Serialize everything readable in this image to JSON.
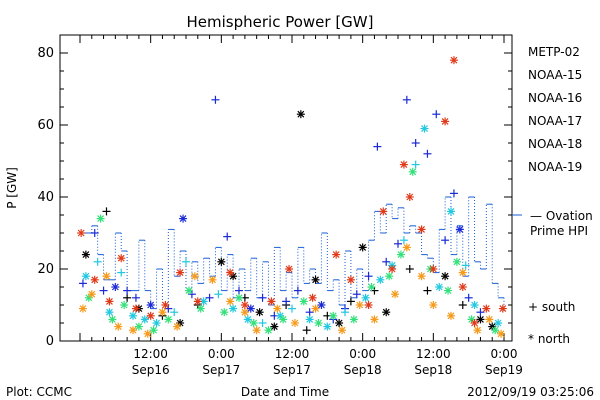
{
  "chart_data": {
    "type": "scatter",
    "title": "Hemispheric Power [GW]",
    "ylabel": "P [GW]",
    "xlabel": "Date and Time",
    "ylim": [
      0,
      85
    ],
    "yticks": [
      0,
      20,
      40,
      60,
      80
    ],
    "xlim_hours": [
      0,
      72
    ],
    "xticks": [
      {
        "hour": 12,
        "time": "12:00",
        "date": "Sep16"
      },
      {
        "hour": 24,
        "time": "0:00",
        "date": "Sep17"
      },
      {
        "hour": 36,
        "time": "12:00",
        "date": "Sep17"
      },
      {
        "hour": 48,
        "time": "0:00",
        "date": "Sep18"
      },
      {
        "hour": 60,
        "time": "12:00",
        "date": "Sep18"
      },
      {
        "hour": 72,
        "time": "0:00",
        "date": "Sep19"
      }
    ],
    "legend": [
      {
        "name": "METP-02",
        "color": "#000000"
      },
      {
        "name": "NOAA-15",
        "color": "#1a2ad6"
      },
      {
        "name": "NOAA-16",
        "color": "#22c8e0"
      },
      {
        "name": "NOAA-17",
        "color": "#33e07a"
      },
      {
        "name": "NOAA-18",
        "color": "#f59a1a"
      },
      {
        "name": "NOAA-19",
        "color": "#e03a1a"
      }
    ],
    "ovation": {
      "label_line1": "— Ovation",
      "label_line2": "Prime HPI",
      "color": "#1a5fd6"
    },
    "symbols": {
      "south": "+ south",
      "north": "* north"
    },
    "footer": {
      "left": "Plot: CCMC",
      "right": "2012/09/19 03:25:06"
    },
    "series": [
      {
        "name": "METP-02",
        "color": "#000000",
        "points": [
          {
            "x": 1,
            "y": 24,
            "m": "*"
          },
          {
            "x": 4.5,
            "y": 36,
            "m": "+"
          },
          {
            "x": 8,
            "y": 12,
            "m": "+"
          },
          {
            "x": 10,
            "y": 9,
            "m": "*"
          },
          {
            "x": 14,
            "y": 7,
            "m": "+"
          },
          {
            "x": 17,
            "y": 5,
            "m": "*"
          },
          {
            "x": 20,
            "y": 10,
            "m": "+"
          },
          {
            "x": 24,
            "y": 22,
            "m": "*"
          },
          {
            "x": 26,
            "y": 18,
            "m": "*"
          },
          {
            "x": 28,
            "y": 12,
            "m": "+"
          },
          {
            "x": 30.5,
            "y": 8,
            "m": "*"
          },
          {
            "x": 33,
            "y": 4,
            "m": "*"
          },
          {
            "x": 35,
            "y": 10,
            "m": "+"
          },
          {
            "x": 37.5,
            "y": 63,
            "m": "*"
          },
          {
            "x": 38.5,
            "y": 3,
            "m": "+"
          },
          {
            "x": 40,
            "y": 17,
            "m": "*"
          },
          {
            "x": 42,
            "y": 7,
            "m": "+"
          },
          {
            "x": 44,
            "y": 5,
            "m": "*"
          },
          {
            "x": 46,
            "y": 11,
            "m": "+"
          },
          {
            "x": 48,
            "y": 26,
            "m": "*"
          },
          {
            "x": 50,
            "y": 14,
            "m": "+"
          },
          {
            "x": 52,
            "y": 8,
            "m": "*"
          },
          {
            "x": 56,
            "y": 20,
            "m": "+"
          },
          {
            "x": 59,
            "y": 14,
            "m": "+"
          },
          {
            "x": 62,
            "y": 18,
            "m": "*"
          },
          {
            "x": 65,
            "y": 10,
            "m": "+"
          },
          {
            "x": 68,
            "y": 6,
            "m": "*"
          },
          {
            "x": 70,
            "y": 4,
            "m": "*"
          }
        ]
      },
      {
        "name": "NOAA-15",
        "color": "#1a2ad6",
        "points": [
          {
            "x": 0.5,
            "y": 16,
            "m": "+"
          },
          {
            "x": 2.5,
            "y": 30,
            "m": "+"
          },
          {
            "x": 4,
            "y": 14,
            "m": "+"
          },
          {
            "x": 6,
            "y": 15,
            "m": "*"
          },
          {
            "x": 8,
            "y": 14,
            "m": "+"
          },
          {
            "x": 9.5,
            "y": 12,
            "m": "+"
          },
          {
            "x": 12,
            "y": 10,
            "m": "*"
          },
          {
            "x": 15,
            "y": 9,
            "m": "+"
          },
          {
            "x": 17.5,
            "y": 34,
            "m": "*"
          },
          {
            "x": 19,
            "y": 13,
            "m": "+"
          },
          {
            "x": 22,
            "y": 12,
            "m": "+"
          },
          {
            "x": 23,
            "y": 67,
            "m": "+"
          },
          {
            "x": 25,
            "y": 29,
            "m": "+"
          },
          {
            "x": 27,
            "y": 14,
            "m": "+"
          },
          {
            "x": 29,
            "y": 9,
            "m": "*"
          },
          {
            "x": 31,
            "y": 12,
            "m": "+"
          },
          {
            "x": 33,
            "y": 7,
            "m": "+"
          },
          {
            "x": 35,
            "y": 11,
            "m": "+"
          },
          {
            "x": 37,
            "y": 14,
            "m": "+"
          },
          {
            "x": 39,
            "y": 8,
            "m": "+"
          },
          {
            "x": 41,
            "y": 10,
            "m": "*"
          },
          {
            "x": 43,
            "y": 6,
            "m": "+"
          },
          {
            "x": 45,
            "y": 9,
            "m": "+"
          },
          {
            "x": 47,
            "y": 13,
            "m": "+"
          },
          {
            "x": 49,
            "y": 18,
            "m": "+"
          },
          {
            "x": 50.5,
            "y": 54,
            "m": "+"
          },
          {
            "x": 52,
            "y": 22,
            "m": "+"
          },
          {
            "x": 54,
            "y": 27,
            "m": "+"
          },
          {
            "x": 55.5,
            "y": 67,
            "m": "+"
          },
          {
            "x": 57,
            "y": 55,
            "m": "+"
          },
          {
            "x": 59,
            "y": 52,
            "m": "+"
          },
          {
            "x": 60.5,
            "y": 63,
            "m": "+"
          },
          {
            "x": 62,
            "y": 28,
            "m": "+"
          },
          {
            "x": 63.5,
            "y": 41,
            "m": "+"
          },
          {
            "x": 64.5,
            "y": 31,
            "m": "*"
          },
          {
            "x": 66,
            "y": 12,
            "m": "+"
          },
          {
            "x": 68,
            "y": 8,
            "m": "+"
          }
        ]
      },
      {
        "name": "NOAA-16",
        "color": "#22c8e0",
        "points": [
          {
            "x": 1,
            "y": 18,
            "m": "*"
          },
          {
            "x": 3,
            "y": 22,
            "m": "+"
          },
          {
            "x": 5,
            "y": 8,
            "m": "*"
          },
          {
            "x": 7,
            "y": 19,
            "m": "+"
          },
          {
            "x": 9,
            "y": 7,
            "m": "*"
          },
          {
            "x": 11,
            "y": 6,
            "m": "*"
          },
          {
            "x": 13,
            "y": 5,
            "m": "*"
          },
          {
            "x": 16,
            "y": 8,
            "m": "+"
          },
          {
            "x": 18,
            "y": 22,
            "m": "+"
          },
          {
            "x": 21,
            "y": 11,
            "m": "*"
          },
          {
            "x": 23.5,
            "y": 13,
            "m": "+"
          },
          {
            "x": 26,
            "y": 9,
            "m": "*"
          },
          {
            "x": 28.5,
            "y": 6,
            "m": "*"
          },
          {
            "x": 31,
            "y": 5,
            "m": "+"
          },
          {
            "x": 34,
            "y": 7,
            "m": "*"
          },
          {
            "x": 36,
            "y": 9,
            "m": "+"
          },
          {
            "x": 39,
            "y": 6,
            "m": "*"
          },
          {
            "x": 42,
            "y": 4,
            "m": "*"
          },
          {
            "x": 45,
            "y": 8,
            "m": "+"
          },
          {
            "x": 48.5,
            "y": 12,
            "m": "*"
          },
          {
            "x": 51,
            "y": 17,
            "m": "*"
          },
          {
            "x": 53,
            "y": 21,
            "m": "*"
          },
          {
            "x": 55,
            "y": 28,
            "m": "+"
          },
          {
            "x": 57,
            "y": 49,
            "m": "+"
          },
          {
            "x": 58.5,
            "y": 59,
            "m": "*"
          },
          {
            "x": 61,
            "y": 15,
            "m": "*"
          },
          {
            "x": 63,
            "y": 36,
            "m": "*"
          },
          {
            "x": 65.5,
            "y": 21,
            "m": "+"
          },
          {
            "x": 67,
            "y": 10,
            "m": "*"
          },
          {
            "x": 71,
            "y": 5,
            "m": "*"
          }
        ]
      },
      {
        "name": "NOAA-17",
        "color": "#33e07a",
        "points": [
          {
            "x": 1.5,
            "y": 12,
            "m": "*"
          },
          {
            "x": 3.5,
            "y": 34,
            "m": "*"
          },
          {
            "x": 5.5,
            "y": 6,
            "m": "*"
          },
          {
            "x": 7.5,
            "y": 10,
            "m": "*"
          },
          {
            "x": 10,
            "y": 4,
            "m": "*"
          },
          {
            "x": 12.5,
            "y": 3,
            "m": "*"
          },
          {
            "x": 15,
            "y": 6,
            "m": "*"
          },
          {
            "x": 18.5,
            "y": 14,
            "m": "*"
          },
          {
            "x": 20.5,
            "y": 9,
            "m": "*"
          },
          {
            "x": 24.5,
            "y": 8,
            "m": "*"
          },
          {
            "x": 27,
            "y": 12,
            "m": "*"
          },
          {
            "x": 29.5,
            "y": 5,
            "m": "*"
          },
          {
            "x": 32,
            "y": 3,
            "m": "*"
          },
          {
            "x": 34.5,
            "y": 6,
            "m": "*"
          },
          {
            "x": 38,
            "y": 11,
            "m": "*"
          },
          {
            "x": 40.5,
            "y": 5,
            "m": "*"
          },
          {
            "x": 43,
            "y": 7,
            "m": "*"
          },
          {
            "x": 46.5,
            "y": 6,
            "m": "*"
          },
          {
            "x": 49.5,
            "y": 15,
            "m": "*"
          },
          {
            "x": 52.5,
            "y": 18,
            "m": "*"
          },
          {
            "x": 54.5,
            "y": 24,
            "m": "*"
          },
          {
            "x": 56.5,
            "y": 47,
            "m": "*"
          },
          {
            "x": 59.5,
            "y": 20,
            "m": "*"
          },
          {
            "x": 62.5,
            "y": 14,
            "m": "*"
          },
          {
            "x": 64,
            "y": 22,
            "m": "*"
          },
          {
            "x": 66.5,
            "y": 6,
            "m": "*"
          },
          {
            "x": 70.5,
            "y": 3,
            "m": "*"
          }
        ]
      },
      {
        "name": "NOAA-18",
        "color": "#f59a1a",
        "points": [
          {
            "x": 0.5,
            "y": 9,
            "m": "*"
          },
          {
            "x": 2,
            "y": 13,
            "m": "*"
          },
          {
            "x": 4.5,
            "y": 18,
            "m": "*"
          },
          {
            "x": 6.5,
            "y": 4,
            "m": "*"
          },
          {
            "x": 9,
            "y": 3,
            "m": "*"
          },
          {
            "x": 11.5,
            "y": 2,
            "m": "*"
          },
          {
            "x": 14,
            "y": 8,
            "m": "*"
          },
          {
            "x": 16.5,
            "y": 4,
            "m": "*"
          },
          {
            "x": 19.5,
            "y": 18,
            "m": "*"
          },
          {
            "x": 22.5,
            "y": 17,
            "m": "*"
          },
          {
            "x": 25.5,
            "y": 11,
            "m": "*"
          },
          {
            "x": 28,
            "y": 8,
            "m": "*"
          },
          {
            "x": 30,
            "y": 3,
            "m": "*"
          },
          {
            "x": 33.5,
            "y": 9,
            "m": "*"
          },
          {
            "x": 36.5,
            "y": 5,
            "m": "*"
          },
          {
            "x": 40,
            "y": 9,
            "m": "*"
          },
          {
            "x": 44.5,
            "y": 3,
            "m": "*"
          },
          {
            "x": 47.5,
            "y": 10,
            "m": "*"
          },
          {
            "x": 50,
            "y": 6,
            "m": "*"
          },
          {
            "x": 53.5,
            "y": 13,
            "m": "*"
          },
          {
            "x": 55.5,
            "y": 26,
            "m": "*"
          },
          {
            "x": 58,
            "y": 18,
            "m": "*"
          },
          {
            "x": 60,
            "y": 10,
            "m": "*"
          },
          {
            "x": 63,
            "y": 7,
            "m": "*"
          },
          {
            "x": 65,
            "y": 19,
            "m": "*"
          },
          {
            "x": 67.5,
            "y": 3,
            "m": "*"
          },
          {
            "x": 69.5,
            "y": 6,
            "m": "*"
          },
          {
            "x": 71.5,
            "y": 2,
            "m": "*"
          }
        ]
      },
      {
        "name": "NOAA-19",
        "color": "#e03a1a",
        "points": [
          {
            "x": 0.2,
            "y": 30,
            "m": "*"
          },
          {
            "x": 2.5,
            "y": 17,
            "m": "*"
          },
          {
            "x": 5,
            "y": 11,
            "m": "*"
          },
          {
            "x": 7,
            "y": 23,
            "m": "*"
          },
          {
            "x": 9.5,
            "y": 9,
            "m": "*"
          },
          {
            "x": 12,
            "y": 7,
            "m": "*"
          },
          {
            "x": 14.5,
            "y": 10,
            "m": "*"
          },
          {
            "x": 17,
            "y": 19,
            "m": "*"
          },
          {
            "x": 20,
            "y": 11,
            "m": "*"
          },
          {
            "x": 25.5,
            "y": 19,
            "m": "*"
          },
          {
            "x": 28,
            "y": 10,
            "m": "*"
          },
          {
            "x": 32.5,
            "y": 11,
            "m": "*"
          },
          {
            "x": 35.5,
            "y": 20,
            "m": "*"
          },
          {
            "x": 39.5,
            "y": 12,
            "m": "*"
          },
          {
            "x": 43.5,
            "y": 24,
            "m": "*"
          },
          {
            "x": 46,
            "y": 17,
            "m": "*"
          },
          {
            "x": 49,
            "y": 10,
            "m": "*"
          },
          {
            "x": 51.5,
            "y": 36,
            "m": "*"
          },
          {
            "x": 53,
            "y": 20,
            "m": "*"
          },
          {
            "x": 55,
            "y": 49,
            "m": "*"
          },
          {
            "x": 56,
            "y": 40,
            "m": "*"
          },
          {
            "x": 58,
            "y": 31,
            "m": "*"
          },
          {
            "x": 60,
            "y": 20,
            "m": "*"
          },
          {
            "x": 62,
            "y": 61,
            "m": "*"
          },
          {
            "x": 63.5,
            "y": 78,
            "m": "*"
          },
          {
            "x": 65,
            "y": 15,
            "m": "*"
          },
          {
            "x": 67,
            "y": 5,
            "m": "*"
          },
          {
            "x": 69,
            "y": 9,
            "m": "*"
          },
          {
            "x": 71.8,
            "y": 9,
            "m": "*"
          }
        ]
      }
    ],
    "ovation_hpi": {
      "x": [
        0,
        2,
        3,
        4,
        6,
        7,
        8,
        10,
        11,
        12,
        13,
        14,
        15,
        16,
        17,
        18,
        19,
        20,
        21,
        22,
        23,
        24,
        25,
        26,
        27,
        28,
        29,
        30,
        31,
        32,
        33,
        34,
        35,
        36,
        37,
        38,
        39,
        40,
        41,
        42,
        43,
        44,
        45,
        46,
        47,
        48,
        49,
        50,
        51,
        52,
        53,
        54,
        55,
        56,
        57,
        58,
        59,
        60,
        61,
        62,
        63,
        64,
        65,
        66,
        67,
        68,
        69,
        70,
        71,
        72
      ],
      "y": [
        30,
        32,
        24,
        17,
        30,
        25,
        14,
        28,
        14,
        9,
        20,
        10,
        31,
        18,
        25,
        14,
        22,
        16,
        23,
        18,
        26,
        14,
        24,
        12,
        20,
        14,
        23,
        12,
        22,
        10,
        26,
        14,
        19,
        12,
        26,
        16,
        20,
        16,
        30,
        14,
        17,
        10,
        25,
        12,
        20,
        14,
        28,
        36,
        30,
        38,
        34,
        37,
        30,
        32,
        30,
        24,
        23,
        19,
        31,
        40,
        24,
        32,
        18,
        40,
        22,
        20,
        38,
        16,
        12,
        8
      ]
    }
  }
}
